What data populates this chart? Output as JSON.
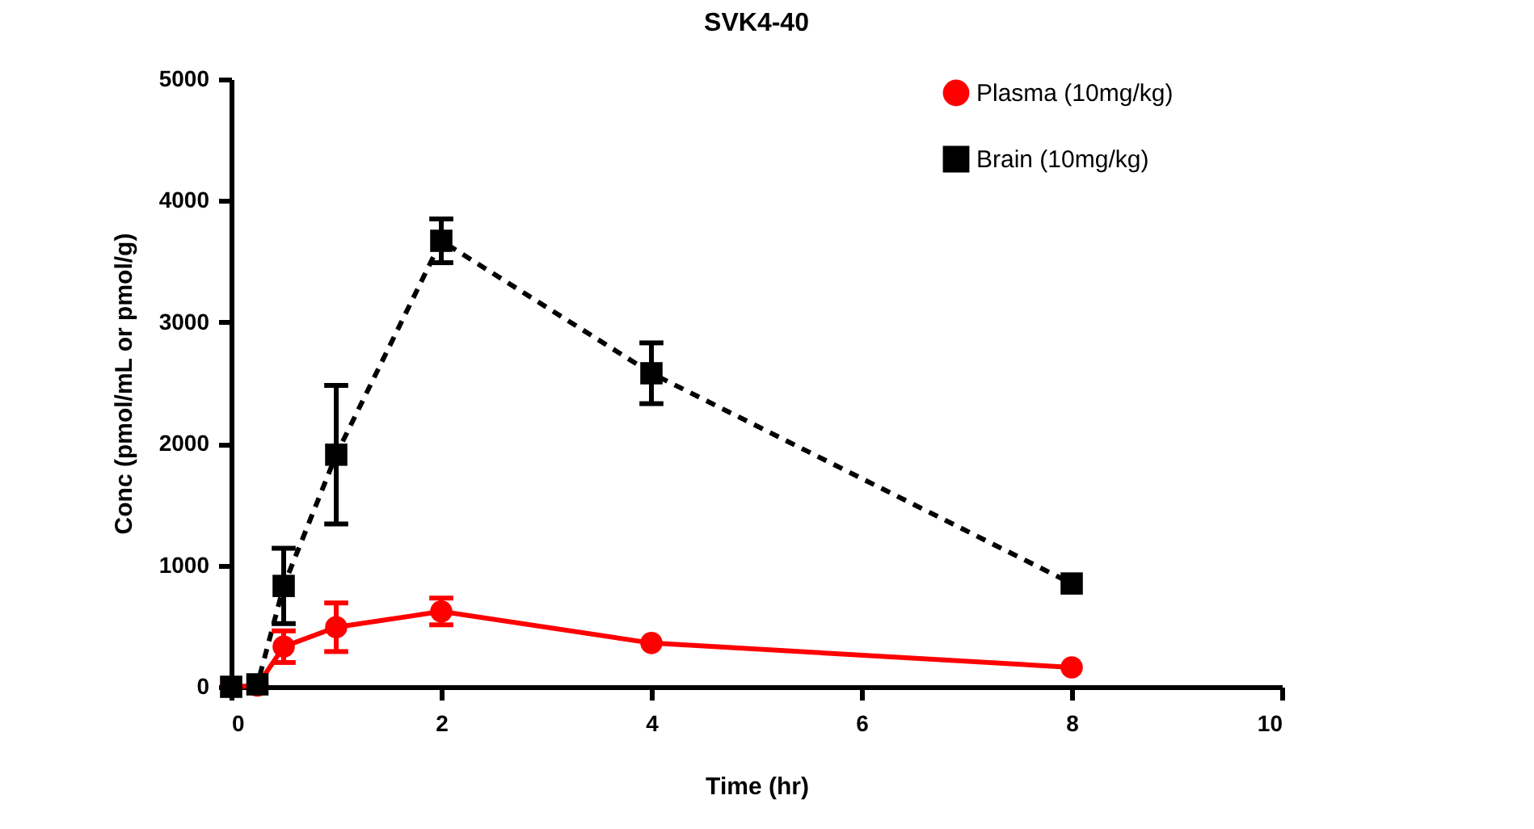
{
  "chart_data": {
    "type": "line",
    "title": "SVK4-40",
    "xlabel": "Time (hr)",
    "ylabel": "Conc (pmol/mL or pmol/g)",
    "xlim": [
      0,
      10
    ],
    "xticks": [
      0,
      2,
      4,
      6,
      8,
      10
    ],
    "ylim": [
      0,
      5000
    ],
    "yticks": [
      0,
      1000,
      2000,
      3000,
      4000,
      5000
    ],
    "grid": false,
    "legend": "top right",
    "x": [
      0,
      0.25,
      0.5,
      1,
      2,
      4,
      8
    ],
    "series": [
      {
        "name": "Plasma (10mg/kg)",
        "color": "#ff0000",
        "marker": "circle",
        "line_style": "solid",
        "values": [
          0,
          10,
          330,
          490,
          620,
          360,
          160
        ],
        "errors": [
          null,
          null,
          130,
          200,
          110,
          null,
          null
        ]
      },
      {
        "name": "Brain (10mg/kg)",
        "color": "#000000",
        "marker": "square",
        "line_style": "dashed",
        "values": [
          0,
          20,
          830,
          1910,
          3670,
          2580,
          850
        ],
        "errors": [
          null,
          null,
          310,
          570,
          180,
          250,
          null
        ]
      }
    ]
  }
}
